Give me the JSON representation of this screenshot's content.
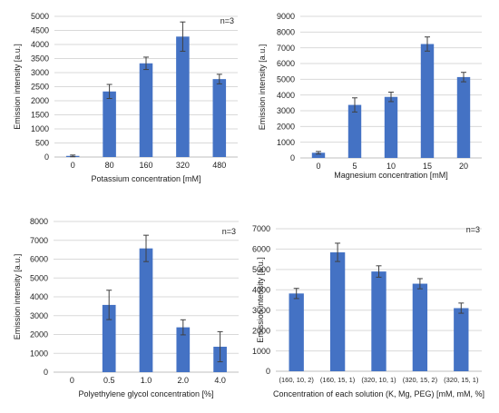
{
  "colors": {
    "bar": "#4472C4",
    "grid": "#d9d9d9",
    "axis": "#bfbfbf",
    "error": "#404040"
  },
  "chart_data": [
    {
      "type": "bar",
      "annotation": "n=3",
      "categories": [
        "0",
        "80",
        "160",
        "320",
        "480"
      ],
      "values": [
        40,
        2330,
        3330,
        4280,
        2770
      ],
      "errors": [
        30,
        250,
        220,
        520,
        170
      ],
      "xlabel": "Potassium concentration [mM]",
      "ylabel": "Emission intensity [a.u.]",
      "ylim": [
        0,
        5000
      ],
      "yticks": [
        "0",
        "500",
        "1000",
        "1500",
        "2000",
        "2500",
        "3000",
        "3500",
        "4000",
        "4500",
        "5000"
      ],
      "grid": true
    },
    {
      "type": "bar",
      "annotation": "",
      "categories": [
        "0",
        "5",
        "10",
        "15",
        "20"
      ],
      "values": [
        330,
        3370,
        3880,
        7240,
        5140
      ],
      "errors": [
        80,
        450,
        300,
        450,
        300
      ],
      "xlabel": "Magnesium concentration [mM]",
      "ylabel": "Emission intensity [a.u.]",
      "ylim": [
        0,
        9000
      ],
      "yticks": [
        "0",
        "1000",
        "2000",
        "3000",
        "4000",
        "5000",
        "6000",
        "7000",
        "8000",
        "9000"
      ],
      "grid": true
    },
    {
      "type": "bar",
      "annotation": "n=3",
      "categories": [
        "0",
        "0.5",
        "1.0",
        "2.0",
        "4.0"
      ],
      "values": [
        0,
        3570,
        6570,
        2380,
        1350
      ],
      "errors": [
        0,
        780,
        700,
        400,
        800
      ],
      "xlabel": "Polyethylene glycol concentration [%]",
      "ylabel": "Emission intensity [a.u.]",
      "ylim": [
        0,
        8000
      ],
      "yticks": [
        "0",
        "1000",
        "2000",
        "3000",
        "4000",
        "5000",
        "6000",
        "7000",
        "8000"
      ],
      "grid": true
    },
    {
      "type": "bar",
      "annotation": "n=3",
      "categories": [
        "(160, 10, 2)",
        "(160, 15, 1)",
        "(320, 10, 1)",
        "(320, 15, 2)",
        "(320, 15, 1)"
      ],
      "values": [
        3820,
        5840,
        4900,
        4300,
        3100
      ],
      "errors": [
        250,
        450,
        280,
        250,
        250
      ],
      "xlabel": "Concentration of each solution (K, Mg, PEG) [mM, mM, %]",
      "ylabel": "Emission intensity [a.u.]",
      "ylim": [
        0,
        7000
      ],
      "yticks": [
        "0",
        "1000",
        "2000",
        "3000",
        "4000",
        "5000",
        "6000",
        "7000"
      ],
      "grid": true
    }
  ]
}
